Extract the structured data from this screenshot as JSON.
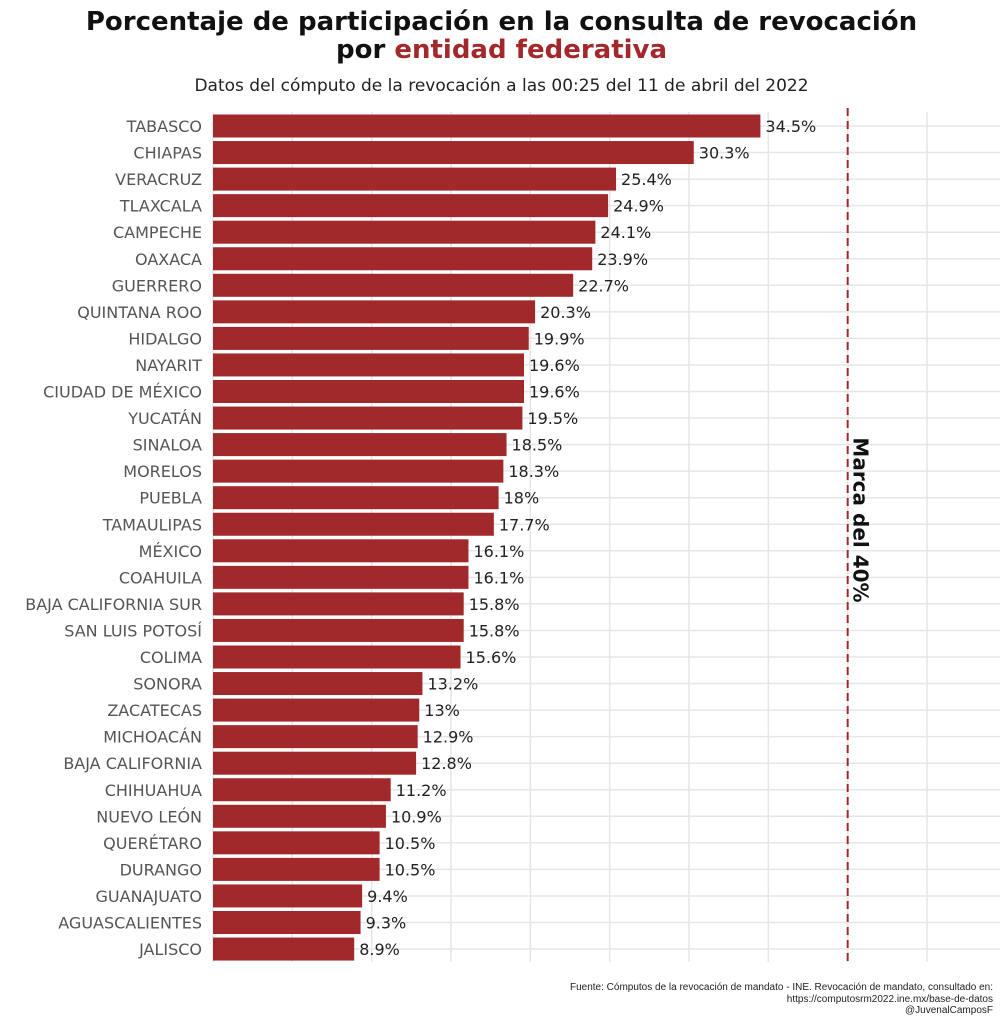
{
  "title_line1": "Porcentaje de participación en la consulta de revocación",
  "title_line2_prefix": "por ",
  "title_line2_highlight": "entidad federativa",
  "subtitle": "Datos del cómputo de la revocación a las 00:25 del 11 de abril del 2022",
  "footer": {
    "source": "Fuente: Cómputos de la revocación de mandato - INE. Revocación de mandato, consultado en:",
    "url": "https://computosrm2022.ine.mx/base-de-datos",
    "author": "@JuvenalCamposF"
  },
  "colors": {
    "bar": "#A1292B",
    "highlight": "#A3282B",
    "reference_line": "#A1292B"
  },
  "chart_data": {
    "type": "bar",
    "orientation": "horizontal",
    "categories": [
      "TABASCO",
      "CHIAPAS",
      "VERACRUZ",
      "TLAXCALA",
      "CAMPECHE",
      "OAXACA",
      "GUERRERO",
      "QUINTANA ROO",
      "HIDALGO",
      "NAYARIT",
      "CIUDAD DE MÉXICO",
      "YUCATÁN",
      "SINALOA",
      "MORELOS",
      "PUEBLA",
      "TAMAULIPAS",
      "MÉXICO",
      "COAHUILA",
      "BAJA CALIFORNIA SUR",
      "SAN LUIS POTOSÍ",
      "COLIMA",
      "SONORA",
      "ZACATECAS",
      "MICHOACÁN",
      "BAJA CALIFORNIA",
      "CHIHUAHUA",
      "NUEVO LEÓN",
      "QUERÉTARO",
      "DURANGO",
      "GUANAJUATO",
      "AGUASCALIENTES",
      "JALISCO"
    ],
    "values": [
      34.5,
      30.3,
      25.4,
      24.9,
      24.1,
      23.9,
      22.7,
      20.3,
      19.9,
      19.6,
      19.6,
      19.5,
      18.5,
      18.3,
      18,
      17.7,
      16.1,
      16.1,
      15.8,
      15.8,
      15.6,
      13.2,
      13,
      12.9,
      12.8,
      11.2,
      10.9,
      10.5,
      10.5,
      9.4,
      9.3,
      8.9
    ],
    "data_labels": [
      "34.5%",
      "30.3%",
      "25.4%",
      "24.9%",
      "24.1%",
      "23.9%",
      "22.7%",
      "20.3%",
      "19.9%",
      "19.6%",
      "19.6%",
      "19.5%",
      "18.5%",
      "18.3%",
      "18%",
      "17.7%",
      "16.1%",
      "16.1%",
      "15.8%",
      "15.8%",
      "15.6%",
      "13.2%",
      "13%",
      "12.9%",
      "12.8%",
      "11.2%",
      "10.9%",
      "10.5%",
      "10.5%",
      "9.4%",
      "9.3%",
      "8.9%"
    ],
    "xlim": [
      0,
      49.6
    ],
    "grid": true,
    "grid_step": 5,
    "x_tick_labels_shown": false,
    "reference_line": {
      "value": 40,
      "style": "dashed",
      "label": "Marca del 40%"
    }
  }
}
